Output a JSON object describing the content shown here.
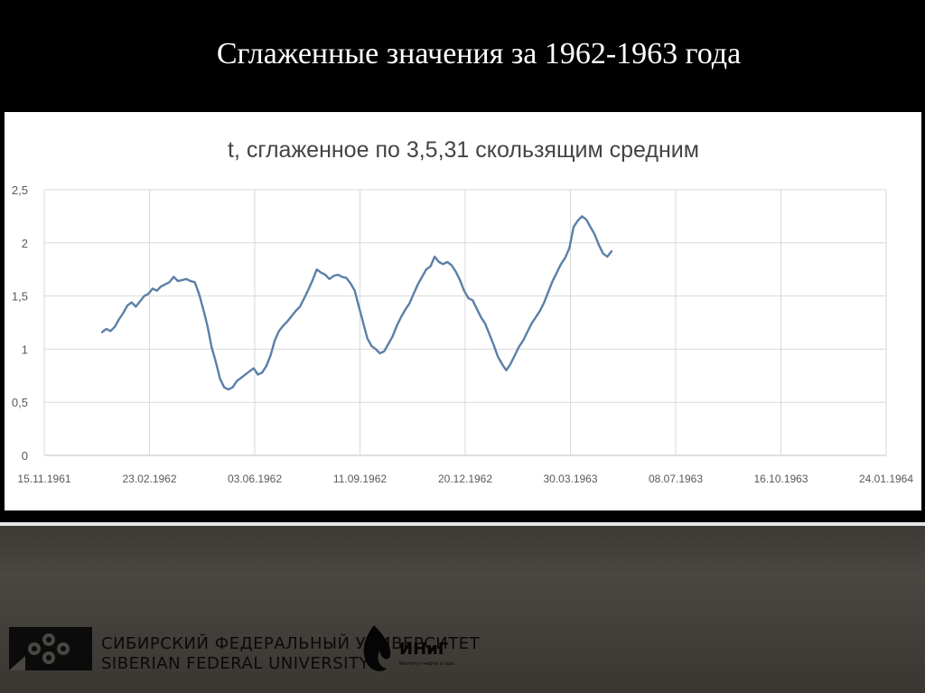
{
  "slide": {
    "title": "Сглаженные значения за 1962-1963 года"
  },
  "chart_data": {
    "type": "line",
    "title": "t, сглаженное по 3,5,31 скользящим средним",
    "xlabel": "",
    "ylabel": "",
    "ylim": [
      0,
      2.5
    ],
    "yticks": [
      "0",
      "0,5",
      "1",
      "1,5",
      "2",
      "2,5"
    ],
    "xticks": [
      "15.11.1961",
      "23.02.1962",
      "03.06.1962",
      "11.09.1962",
      "20.12.1962",
      "30.03.1963",
      "08.07.1963",
      "16.10.1963",
      "24.01.1964"
    ],
    "grid": "vertical and horizontal",
    "legend": "none",
    "line_color": "#5b7fa8",
    "series": [
      {
        "x_unit": "days since 15.11.1961",
        "points": [
          [
            55,
            1.16
          ],
          [
            59,
            1.19
          ],
          [
            63,
            1.17
          ],
          [
            67,
            1.21
          ],
          [
            71,
            1.28
          ],
          [
            75,
            1.34
          ],
          [
            79,
            1.41
          ],
          [
            83,
            1.44
          ],
          [
            87,
            1.4
          ],
          [
            91,
            1.45
          ],
          [
            95,
            1.5
          ],
          [
            99,
            1.52
          ],
          [
            103,
            1.57
          ],
          [
            107,
            1.55
          ],
          [
            111,
            1.59
          ],
          [
            115,
            1.61
          ],
          [
            119,
            1.63
          ],
          [
            123,
            1.68
          ],
          [
            127,
            1.64
          ],
          [
            131,
            1.65
          ],
          [
            135,
            1.66
          ],
          [
            139,
            1.64
          ],
          [
            143,
            1.63
          ],
          [
            147,
            1.52
          ],
          [
            151,
            1.38
          ],
          [
            155,
            1.22
          ],
          [
            159,
            1.02
          ],
          [
            163,
            0.88
          ],
          [
            167,
            0.72
          ],
          [
            171,
            0.64
          ],
          [
            175,
            0.62
          ],
          [
            179,
            0.64
          ],
          [
            183,
            0.7
          ],
          [
            187,
            0.73
          ],
          [
            191,
            0.76
          ],
          [
            195,
            0.79
          ],
          [
            199,
            0.82
          ],
          [
            203,
            0.76
          ],
          [
            207,
            0.78
          ],
          [
            211,
            0.84
          ],
          [
            215,
            0.94
          ],
          [
            219,
            1.08
          ],
          [
            223,
            1.17
          ],
          [
            227,
            1.22
          ],
          [
            231,
            1.26
          ],
          [
            235,
            1.31
          ],
          [
            239,
            1.36
          ],
          [
            243,
            1.4
          ],
          [
            247,
            1.48
          ],
          [
            251,
            1.56
          ],
          [
            255,
            1.65
          ],
          [
            259,
            1.75
          ],
          [
            263,
            1.72
          ],
          [
            267,
            1.7
          ],
          [
            271,
            1.66
          ],
          [
            275,
            1.69
          ],
          [
            279,
            1.7
          ],
          [
            283,
            1.68
          ],
          [
            287,
            1.67
          ],
          [
            291,
            1.62
          ],
          [
            295,
            1.55
          ],
          [
            299,
            1.4
          ],
          [
            303,
            1.25
          ],
          [
            307,
            1.1
          ],
          [
            311,
            1.03
          ],
          [
            315,
            1.0
          ],
          [
            319,
            0.96
          ],
          [
            323,
            0.98
          ],
          [
            327,
            1.05
          ],
          [
            331,
            1.12
          ],
          [
            335,
            1.22
          ],
          [
            339,
            1.3
          ],
          [
            343,
            1.37
          ],
          [
            347,
            1.43
          ],
          [
            351,
            1.52
          ],
          [
            355,
            1.61
          ],
          [
            359,
            1.68
          ],
          [
            363,
            1.75
          ],
          [
            367,
            1.78
          ],
          [
            371,
            1.87
          ],
          [
            375,
            1.82
          ],
          [
            379,
            1.8
          ],
          [
            383,
            1.82
          ],
          [
            387,
            1.79
          ],
          [
            391,
            1.73
          ],
          [
            395,
            1.65
          ],
          [
            399,
            1.55
          ],
          [
            403,
            1.48
          ],
          [
            407,
            1.46
          ],
          [
            411,
            1.38
          ],
          [
            415,
            1.3
          ],
          [
            419,
            1.24
          ],
          [
            423,
            1.14
          ],
          [
            427,
            1.04
          ],
          [
            431,
            0.93
          ],
          [
            435,
            0.86
          ],
          [
            439,
            0.8
          ],
          [
            443,
            0.86
          ],
          [
            447,
            0.94
          ],
          [
            451,
            1.02
          ],
          [
            455,
            1.08
          ],
          [
            459,
            1.16
          ],
          [
            463,
            1.24
          ],
          [
            467,
            1.3
          ],
          [
            471,
            1.36
          ],
          [
            475,
            1.44
          ],
          [
            479,
            1.54
          ],
          [
            483,
            1.64
          ],
          [
            487,
            1.72
          ],
          [
            491,
            1.8
          ],
          [
            495,
            1.86
          ],
          [
            499,
            1.95
          ],
          [
            503,
            2.15
          ],
          [
            507,
            2.21
          ],
          [
            511,
            2.25
          ],
          [
            515,
            2.22
          ],
          [
            519,
            2.15
          ],
          [
            523,
            2.08
          ],
          [
            527,
            1.98
          ],
          [
            531,
            1.9
          ],
          [
            535,
            1.87
          ],
          [
            539,
            1.92
          ]
        ]
      }
    ]
  },
  "footer": {
    "university_ru": "СИБИРСКИЙ ФЕДЕРАЛЬНЫЙ УНИВЕРСИТЕТ",
    "university_en": "SIBERIAN FEDERAL UNIVERSITY",
    "institute_abbr": "ИНиГ",
    "institute_small": "Институт нефти и газа"
  }
}
